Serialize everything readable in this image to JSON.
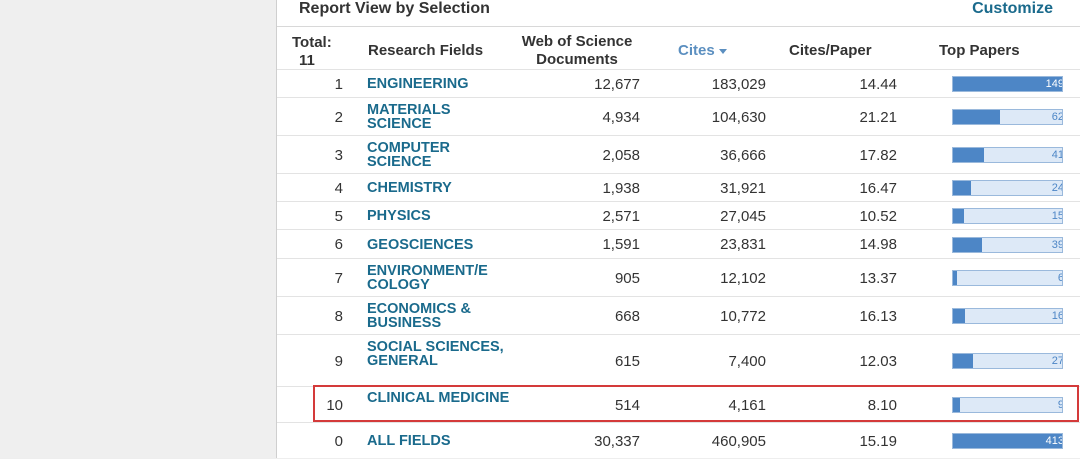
{
  "header": {
    "title": "Report View by Selection",
    "customize_label": "Customize"
  },
  "columns": {
    "total_label": "Total:",
    "total_value": "11",
    "research_fields": "Research Fields",
    "wos_documents_line1": "Web of Science",
    "wos_documents_line2": "Documents",
    "cites": "Cites",
    "cites_per_paper": "Cites/Paper",
    "top_papers": "Top Papers"
  },
  "sort": {
    "column": "Cites",
    "direction": "descending"
  },
  "rows": [
    {
      "rank": "1",
      "field": "ENGINEERING",
      "docs": "12,677",
      "cites": "183,029",
      "cpp": "14.44",
      "top": "149",
      "top_fraction": 1.0
    },
    {
      "rank": "2",
      "field": "MATERIALS SCIENCE",
      "docs": "4,934",
      "cites": "104,630",
      "cpp": "21.21",
      "top": "62",
      "top_fraction": 0.42
    },
    {
      "rank": "3",
      "field": "COMPUTER SCIENCE",
      "docs": "2,058",
      "cites": "36,666",
      "cpp": "17.82",
      "top": "41",
      "top_fraction": 0.28
    },
    {
      "rank": "4",
      "field": "CHEMISTRY",
      "docs": "1,938",
      "cites": "31,921",
      "cpp": "16.47",
      "top": "24",
      "top_fraction": 0.16
    },
    {
      "rank": "5",
      "field": "PHYSICS",
      "docs": "2,571",
      "cites": "27,045",
      "cpp": "10.52",
      "top": "15",
      "top_fraction": 0.1
    },
    {
      "rank": "6",
      "field": "GEOSCIENCES",
      "docs": "1,591",
      "cites": "23,831",
      "cpp": "14.98",
      "top": "39",
      "top_fraction": 0.26
    },
    {
      "rank": "7",
      "field": "ENVIRONMENT/E COLOGY",
      "docs": "905",
      "cites": "12,102",
      "cpp": "13.37",
      "top": "6",
      "top_fraction": 0.04
    },
    {
      "rank": "8",
      "field": "ECONOMICS & BUSINESS",
      "docs": "668",
      "cites": "10,772",
      "cpp": "16.13",
      "top": "16",
      "top_fraction": 0.11
    },
    {
      "rank": "9",
      "field": "SOCIAL SCIENCES, GENERAL",
      "docs": "615",
      "cites": "7,400",
      "cpp": "12.03",
      "top": "27",
      "top_fraction": 0.18
    },
    {
      "rank": "10",
      "field": "CLINICAL MEDICINE",
      "docs": "514",
      "cites": "4,161",
      "cpp": "8.10",
      "top": "9",
      "top_fraction": 0.06
    },
    {
      "rank": "0",
      "field": "ALL FIELDS",
      "docs": "30,337",
      "cites": "460,905",
      "cpp": "15.19",
      "top": "413",
      "top_fraction": 1.0
    }
  ],
  "highlighted_row": "CLINICAL MEDICINE",
  "colors": {
    "link": "#1a6a8c",
    "sort_header": "#5b8fc0",
    "bar_fill": "#4d86c6",
    "bar_bg": "#dde9f7",
    "highlight": "#d43a3a"
  }
}
